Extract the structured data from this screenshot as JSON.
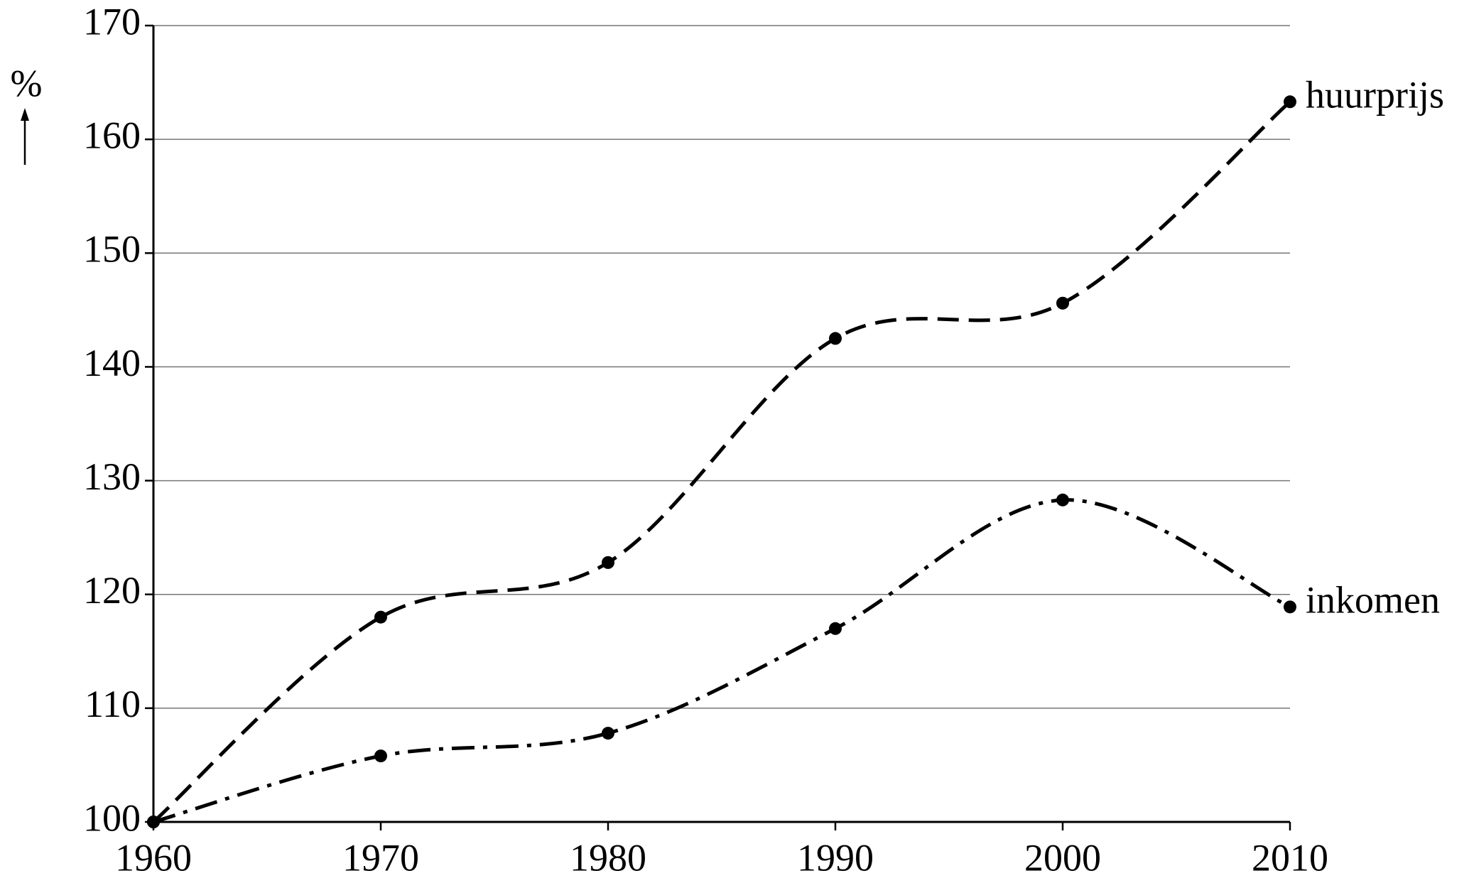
{
  "chart_data": {
    "type": "line",
    "y_label": "%",
    "x": [
      1960,
      1970,
      1980,
      1990,
      2000,
      2010
    ],
    "series": [
      {
        "name": "huurprijs",
        "color": "#000000",
        "dash": "dashed",
        "values": [
          100,
          118,
          122.8,
          142.5,
          145.6,
          163.3
        ]
      },
      {
        "name": "inkomen",
        "color": "#000000",
        "dash": "dashdot",
        "values": [
          100,
          105.8,
          107.8,
          117,
          128.3,
          118.9
        ]
      }
    ],
    "xlim": [
      1960,
      2010
    ],
    "xticks": [
      1960,
      1970,
      1980,
      1990,
      2000,
      2010
    ],
    "ylim": [
      100,
      170
    ],
    "yticks": [
      100,
      110,
      120,
      130,
      140,
      150,
      160,
      170
    ],
    "grid": true
  }
}
